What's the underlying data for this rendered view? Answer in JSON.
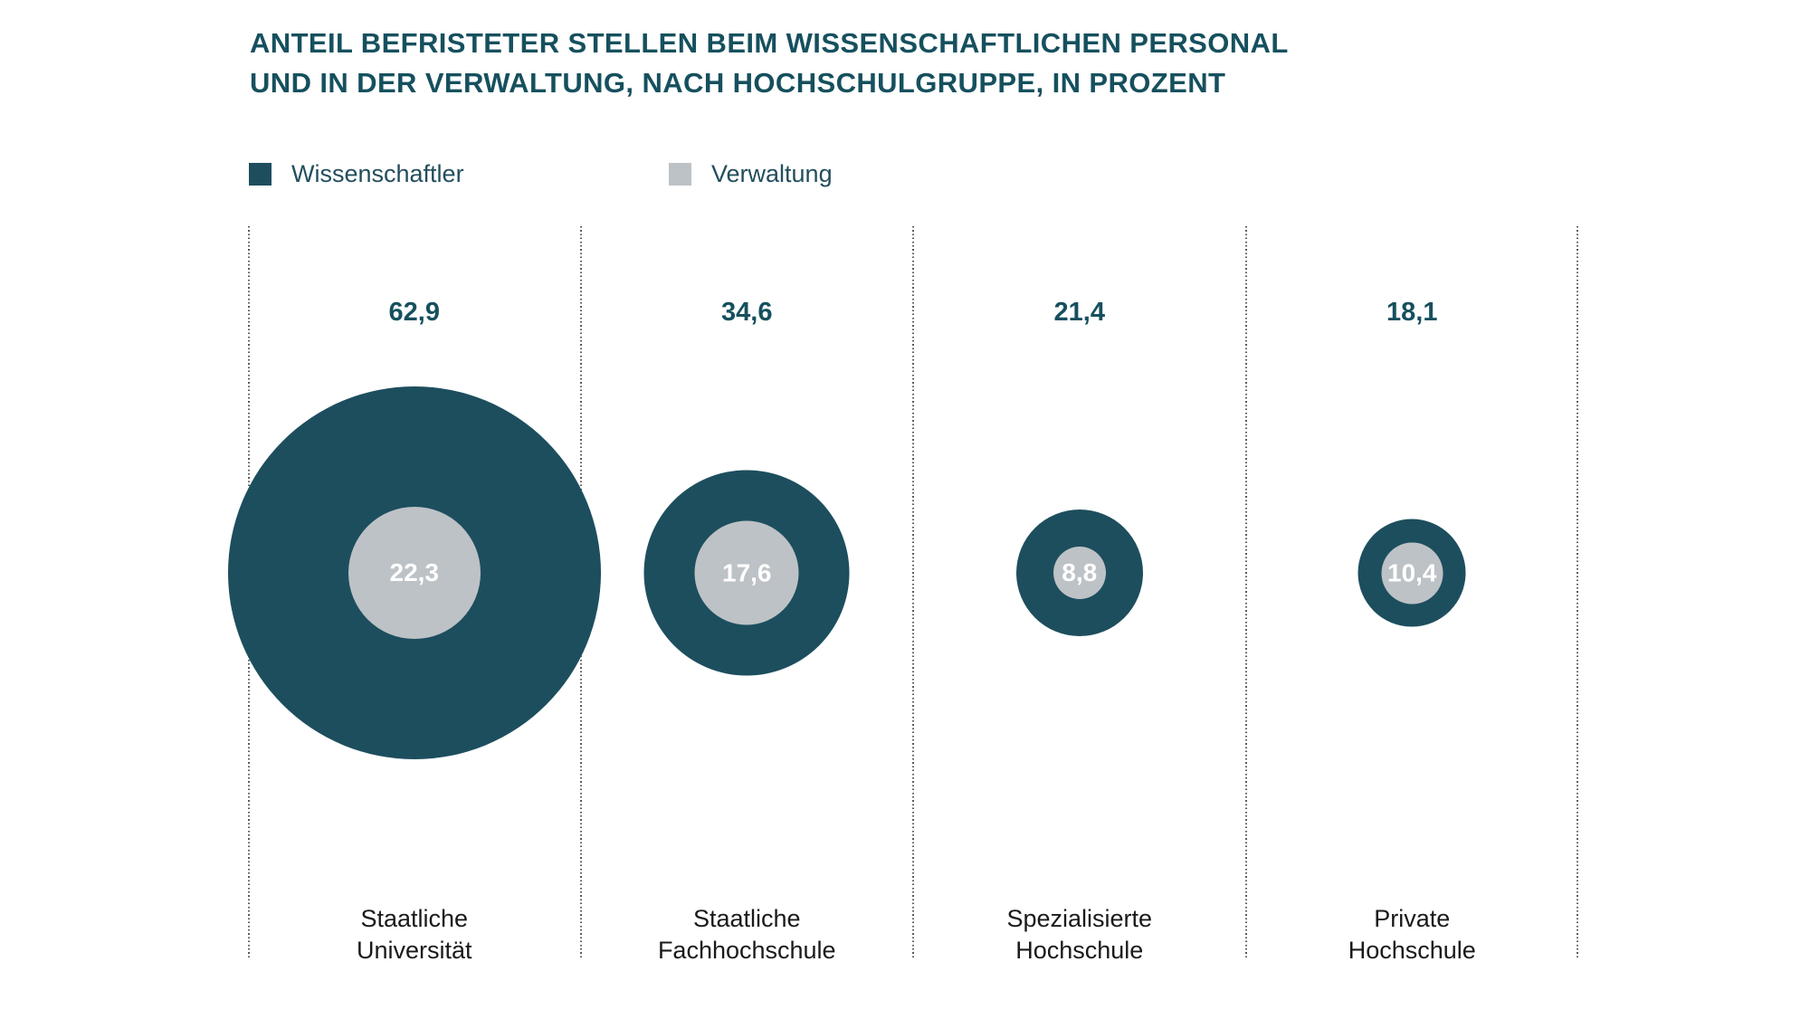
{
  "title": {
    "line1": "ANTEIL BEFRISTETER STELLEN BEIM WISSENSCHAFTLICHEN PERSONAL",
    "line2": "UND IN DER VERWALTUNG, NACH HOCHSCHULGRUPPE, IN PROZENT"
  },
  "colors": {
    "accent_teal": "#1d4e5e",
    "light_gray": "#bdc2c6",
    "title_text": "#16505e",
    "category_text": "#1a1a1a",
    "separator_dots": "#5a5a5a",
    "bubble_value_text": "#ffffff",
    "background": "#ffffff"
  },
  "chart_data": {
    "type": "bubble",
    "title": "Anteil befristeter Stellen beim wissenschaftlichen Personal und in der Verwaltung, nach Hochschulgruppe, in Prozent",
    "unit": "Prozent",
    "legend_position": "top-left",
    "layout_note": "one concentric bubble pair per category, radius proportional to value, dotted vertical column separators, value of outer series printed above each bubble, value of inner series printed inside inner bubble",
    "categories": [
      "Staatliche Universität",
      "Staatliche Fachhochschule",
      "Spezialisierte Hochschule",
      "Private Hochschule"
    ],
    "category_lines": [
      [
        "Staatliche",
        "Universität"
      ],
      [
        "Staatliche",
        "Fachhochschule"
      ],
      [
        "Spezialisierte",
        "Hochschule"
      ],
      [
        "Private",
        "Hochschule"
      ]
    ],
    "series": [
      {
        "name": "Wissenschaftler",
        "color": "#1d4e5e",
        "values": [
          62.9,
          34.6,
          21.4,
          18.1
        ],
        "labels": [
          "62,9",
          "34,6",
          "21,4",
          "18,1"
        ],
        "label_position": "above bubble"
      },
      {
        "name": "Verwaltung",
        "color": "#bdc2c6",
        "values": [
          22.3,
          17.6,
          8.8,
          10.4
        ],
        "labels": [
          "22,3",
          "17,6",
          "8,8",
          "10,4"
        ],
        "label_position": "inside inner bubble"
      }
    ]
  }
}
